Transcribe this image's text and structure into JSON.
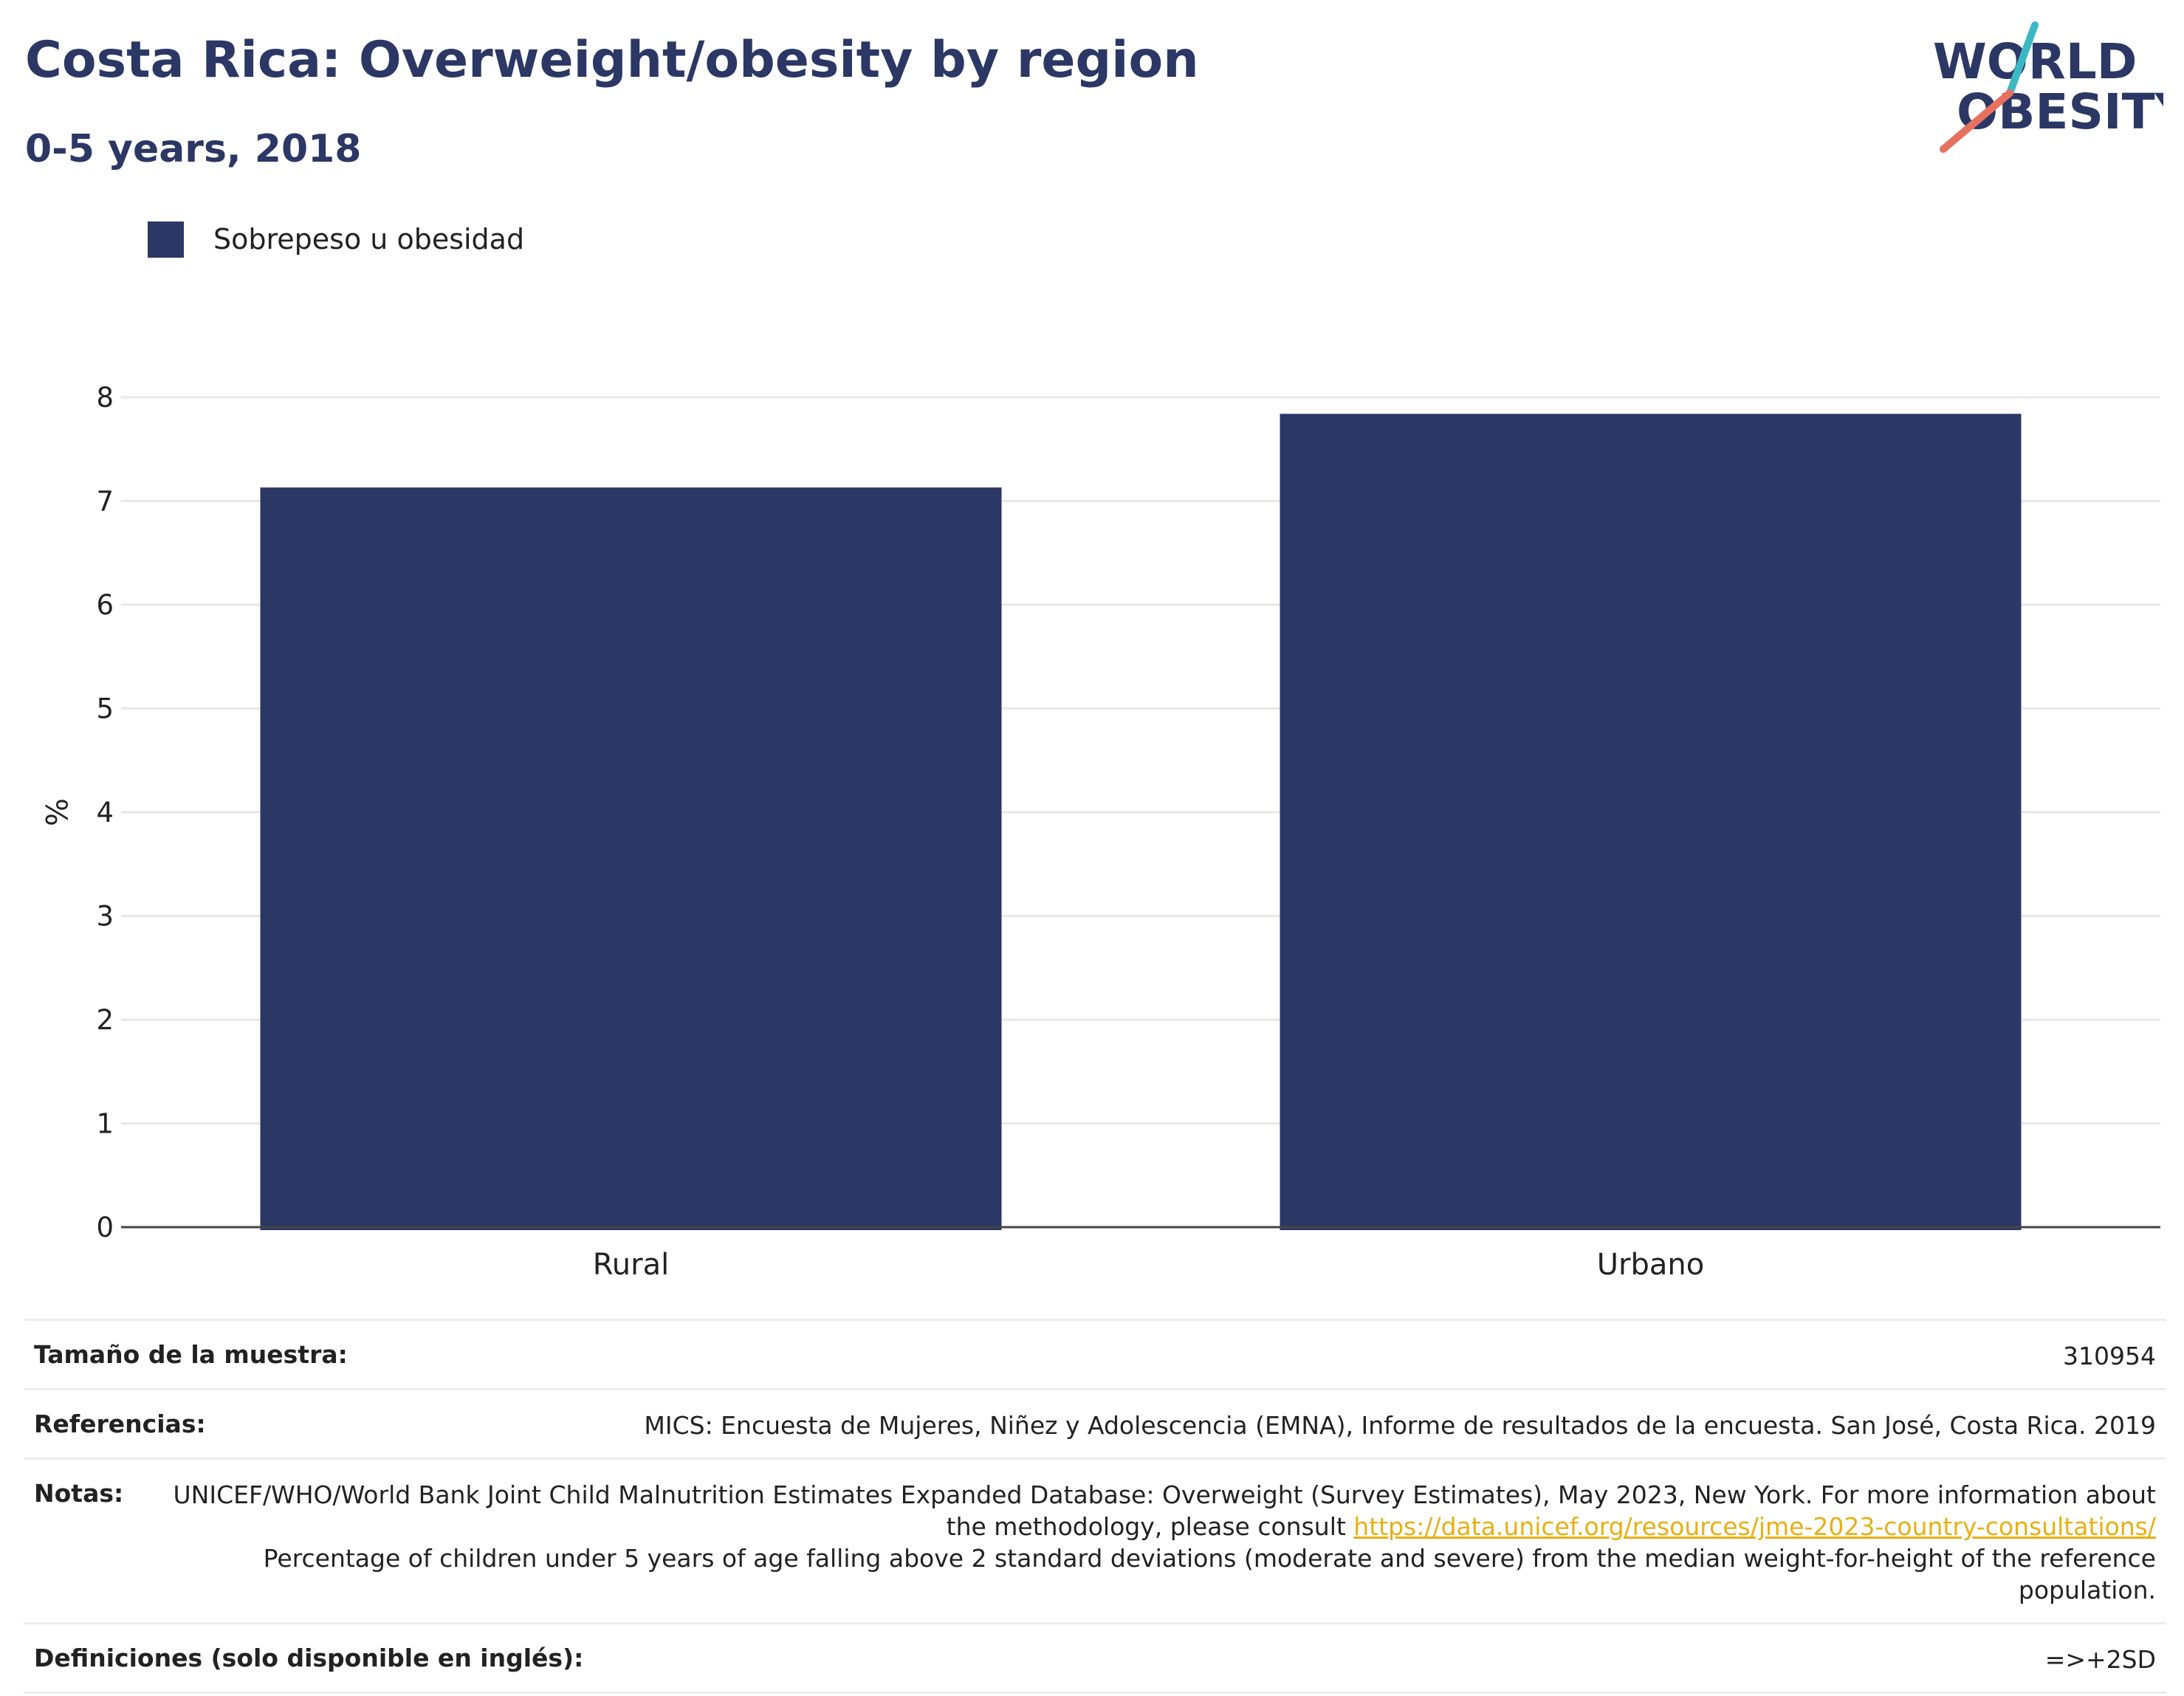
{
  "header": {
    "title": "Costa Rica: Overweight/obesity by region",
    "subtitle": "0-5 years, 2018"
  },
  "logo": {
    "line1": "WORLD",
    "line2": "OBESITY"
  },
  "colors": {
    "bar": "#2b3764",
    "accent_teal": "#3bb8c3",
    "accent_coral": "#e8705f",
    "link": "#e6b012"
  },
  "chart_data": {
    "type": "bar",
    "categories": [
      "Rural",
      "Urbano"
    ],
    "series": [
      {
        "name": "Sobrepeso u obesidad",
        "values": [
          7.13,
          7.84
        ]
      }
    ],
    "ylabel": "%",
    "xlabel": "",
    "ylim": [
      0,
      8
    ],
    "yticks": [
      0,
      1,
      2,
      3,
      4,
      5,
      6,
      7,
      8
    ],
    "grid": true,
    "legend_position": "top-left"
  },
  "info": {
    "sample_label": "Tamaño de la muestra:",
    "sample_value": "310954",
    "refs_label": "Referencias:",
    "refs_value": "MICS: Encuesta de Mujeres, Niñez y Adolescencia (EMNA), Informe de resultados de la encuesta. San José, Costa Rica. 2019",
    "notes_label": "Notas:",
    "notes_text_1": "UNICEF/WHO/World Bank Joint Child Malnutrition Estimates Expanded Database: Overweight (Survey Estimates), May 2023, New York. For more information about the methodology, please consult ",
    "notes_link": "https://data.unicef.org/resources/jme-2023-country-consultations/",
    "notes_text_2": "Percentage of children under 5 years of age falling above 2 standard deviations (moderate and severe) from the median weight-for-height of the reference population.",
    "defs_label": "Definiciones (solo disponible en inglés):",
    "defs_value": "=>+2SD"
  }
}
